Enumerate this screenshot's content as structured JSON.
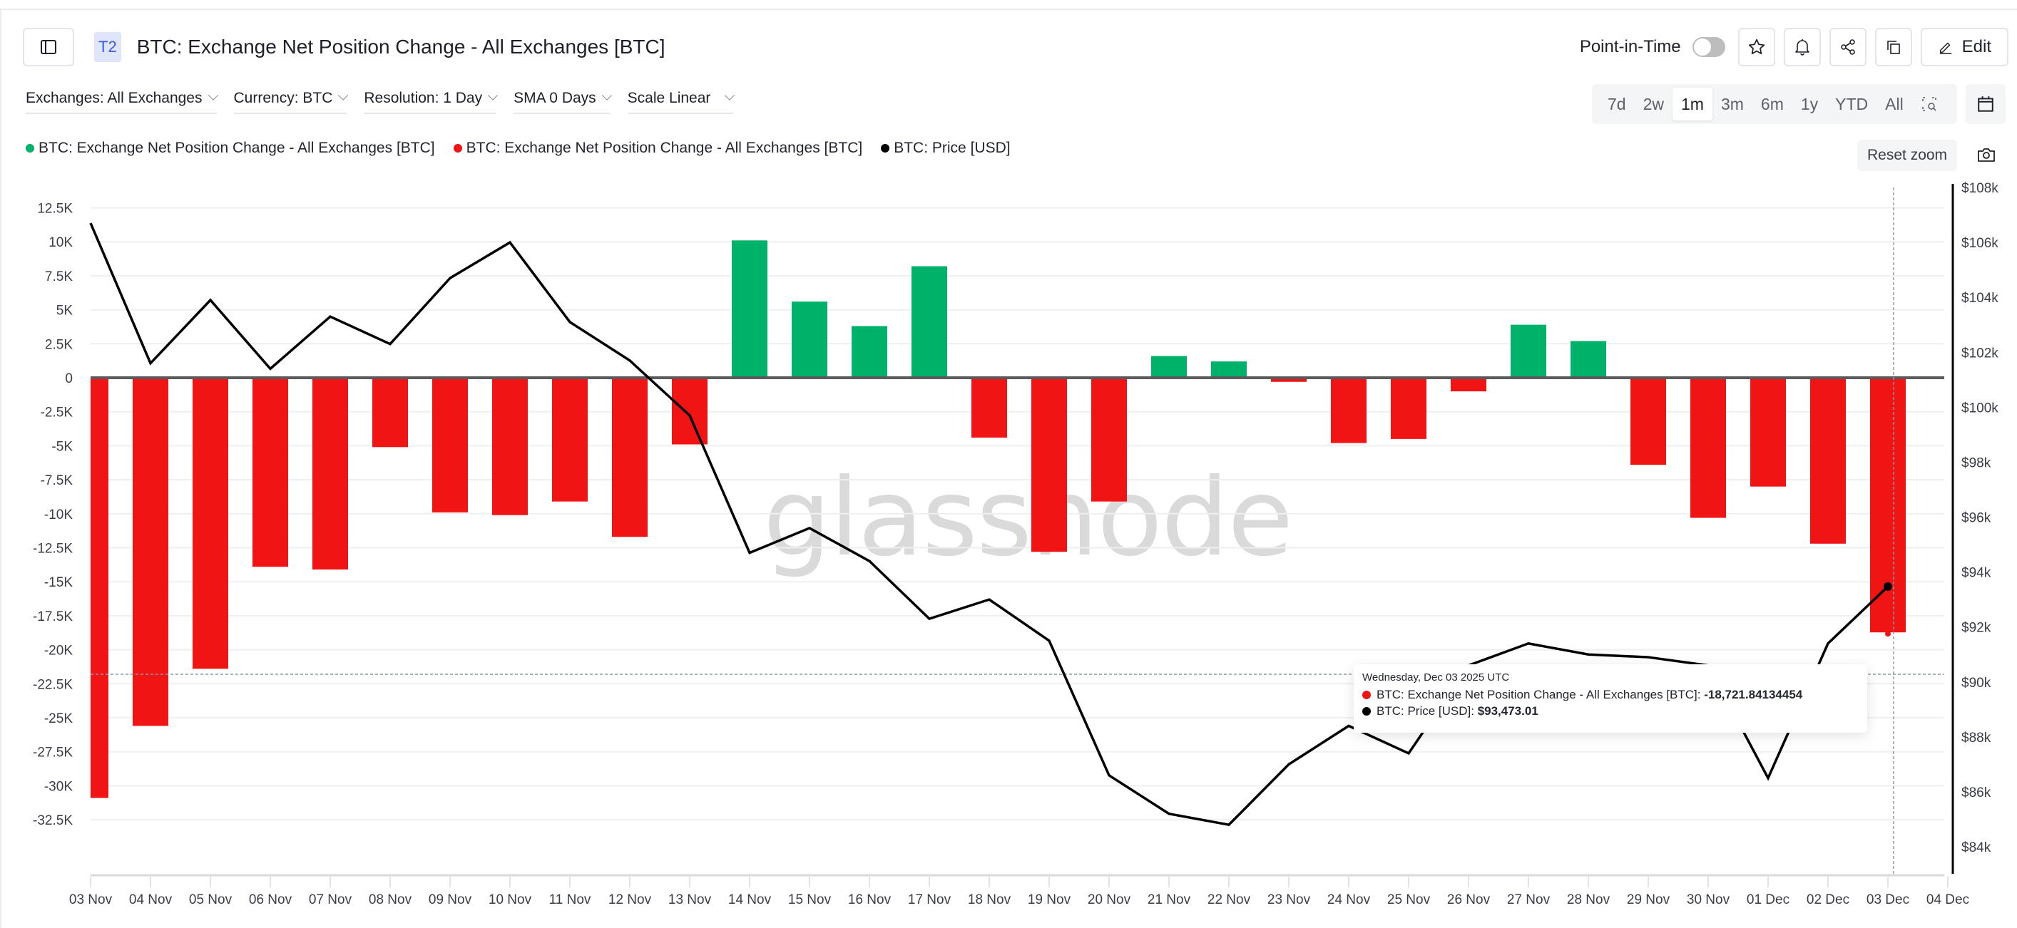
{
  "header": {
    "badge": "T2",
    "title": "BTC: Exchange Net Position Change - All Exchanges [BTC]",
    "point_in_time_label": "Point-in-Time",
    "point_in_time_enabled": false,
    "edit_label": "Edit"
  },
  "filters": [
    {
      "label": "Exchanges: All Exchanges"
    },
    {
      "label": "Currency: BTC"
    },
    {
      "label": "Resolution: 1 Day"
    },
    {
      "label": "SMA 0 Days"
    },
    {
      "label": "Scale Linear"
    }
  ],
  "ranges": [
    {
      "label": "7d"
    },
    {
      "label": "2w"
    },
    {
      "label": "1m",
      "active": true
    },
    {
      "label": "3m"
    },
    {
      "label": "6m"
    },
    {
      "label": "1y"
    },
    {
      "label": "YTD"
    },
    {
      "label": "All"
    }
  ],
  "legend": [
    {
      "label": "BTC: Exchange Net Position Change - All Exchanges [BTC]",
      "color": "#00b16a"
    },
    {
      "label": "BTC: Exchange Net Position Change - All Exchanges [BTC]",
      "color": "#f01414"
    },
    {
      "label": "BTC: Price [USD]",
      "color": "#000000"
    }
  ],
  "reset_zoom_label": "Reset zoom",
  "watermark": "glassnode",
  "tooltip": {
    "date": "Wednesday, Dec 03 2025 UTC",
    "series1_label": "BTC: Exchange Net Position Change - All Exchanges [BTC]: ",
    "series1_value": "-18,721.84134454",
    "series2_label": "BTC: Price [USD]: ",
    "series2_value": "$93,473.01"
  },
  "colors": {
    "positive": "#00b16a",
    "negative": "#f01414",
    "price": "#000000",
    "grid": "#efefef",
    "zero_line": "#5a5a5a"
  },
  "chart_data": {
    "type": "bar",
    "title": "BTC: Exchange Net Position Change - All Exchanges [BTC]",
    "categories": [
      "03 Nov",
      "04 Nov",
      "05 Nov",
      "06 Nov",
      "07 Nov",
      "08 Nov",
      "09 Nov",
      "10 Nov",
      "11 Nov",
      "12 Nov",
      "13 Nov",
      "14 Nov",
      "15 Nov",
      "16 Nov",
      "17 Nov",
      "18 Nov",
      "19 Nov",
      "20 Nov",
      "21 Nov",
      "22 Nov",
      "23 Nov",
      "24 Nov",
      "25 Nov",
      "26 Nov",
      "27 Nov",
      "28 Nov",
      "29 Nov",
      "30 Nov",
      "01 Dec",
      "02 Dec",
      "03 Dec"
    ],
    "x_tick_labels": [
      "03 Nov",
      "04 Nov",
      "05 Nov",
      "06 Nov",
      "07 Nov",
      "08 Nov",
      "09 Nov",
      "10 Nov",
      "11 Nov",
      "12 Nov",
      "13 Nov",
      "14 Nov",
      "15 Nov",
      "16 Nov",
      "17 Nov",
      "18 Nov",
      "19 Nov",
      "20 Nov",
      "21 Nov",
      "22 Nov",
      "23 Nov",
      "24 Nov",
      "25 Nov",
      "26 Nov",
      "27 Nov",
      "28 Nov",
      "29 Nov",
      "30 Nov",
      "01 Dec",
      "02 Dec",
      "03 Dec",
      "04 Dec"
    ],
    "series": [
      {
        "name": "BTC: Exchange Net Position Change - All Exchanges [BTC]",
        "type": "bar",
        "axis": "left",
        "positive_color": "#00b16a",
        "negative_color": "#f01414",
        "values": [
          -30900,
          -25600,
          -21400,
          -13900,
          -14100,
          -5100,
          -9900,
          -10100,
          -9100,
          -11700,
          -4900,
          10100,
          5600,
          3800,
          8200,
          -4400,
          -12800,
          -9100,
          1600,
          1200,
          -300,
          -4800,
          -4500,
          -1000,
          3900,
          2700,
          -6400,
          -10300,
          -8000,
          -12200,
          -18721.84
        ]
      },
      {
        "name": "BTC: Price [USD]",
        "type": "line",
        "axis": "right",
        "color": "#000000",
        "values": [
          106700,
          101600,
          103900,
          101400,
          103300,
          102300,
          104700,
          106000,
          103100,
          101700,
          99700,
          94700,
          95600,
          94400,
          92300,
          93000,
          91500,
          86600,
          85200,
          84800,
          87000,
          88400,
          87400,
          90600,
          91400,
          91000,
          90900,
          90600,
          86500,
          91400,
          93473.01
        ]
      }
    ],
    "y_left": {
      "ticks": [
        "12.5K",
        "10K",
        "7.5K",
        "5K",
        "2.5K",
        "0",
        "-2.5K",
        "-5K",
        "-7.5K",
        "-10K",
        "-12.5K",
        "-15K",
        "-17.5K",
        "-20K",
        "-22.5K",
        "-25K",
        "-27.5K",
        "-30K",
        "-32.5K"
      ],
      "range": [
        -34500,
        12500
      ]
    },
    "y_right": {
      "ticks": [
        "$108k",
        "$106k",
        "$104k",
        "$102k",
        "$100k",
        "$98k",
        "$96k",
        "$94k",
        "$92k",
        "$90k",
        "$88k",
        "$86k",
        "$84k"
      ],
      "range": [
        83000,
        108000
      ]
    },
    "xlabel": "",
    "ylabel": "",
    "grid": true,
    "legend_position": "top-left",
    "crosshair": {
      "x": "03 Dec",
      "y_left": -21800
    }
  }
}
